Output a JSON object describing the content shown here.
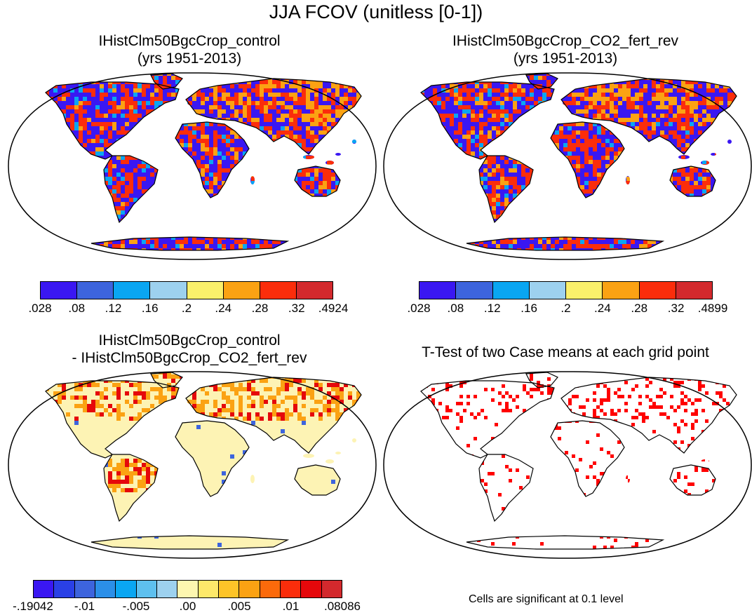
{
  "title": "JJA FCOV (unitless [0-1])",
  "panels": [
    {
      "title1": "IHistClm50BgcCrop_control",
      "title2": "(yrs 1951-2013)"
    },
    {
      "title1": "IHistClm50BgcCrop_CO2_fert_rev",
      "title2": "(yrs 1951-2013)"
    },
    {
      "title1": "IHistClm50BgcCrop_control",
      "title2": "- IHistClm50BgcCrop_CO2_fert_rev"
    },
    {
      "title1": "T-Test of two Case means at each grid point",
      "title2": ""
    }
  ],
  "colorbars": {
    "abs1": {
      "colors": [
        "#3a17f2",
        "#3d64dd",
        "#0aa6f2",
        "#9dd1ef",
        "#fbf06b",
        "#fba213",
        "#fb2d0b",
        "#d3292d"
      ],
      "labels": [
        ".028",
        ".08",
        ".12",
        ".16",
        ".2",
        ".24",
        ".28",
        ".32",
        ".4924"
      ]
    },
    "abs2": {
      "colors": [
        "#3a17f2",
        "#3d64dd",
        "#0aa6f2",
        "#9dd1ef",
        "#fbf06b",
        "#fba213",
        "#fb2d0b",
        "#d3292d"
      ],
      "labels": [
        ".028",
        ".08",
        ".12",
        ".16",
        ".2",
        ".24",
        ".28",
        ".32",
        ".4899"
      ]
    },
    "diff": {
      "colors": [
        "#3a17f2",
        "#2a40e6",
        "#3d64dd",
        "#2b8fe8",
        "#0aa6f2",
        "#5ec0ef",
        "#9dd1ef",
        "#fdf6b0",
        "#fde86a",
        "#fdc428",
        "#fba213",
        "#fb6a0b",
        "#fb2d0b",
        "#e5080b",
        "#d3292d"
      ],
      "labels": [
        "-.19042",
        "-.01",
        "-.005",
        ".00",
        ".005",
        ".01",
        ".08086"
      ]
    }
  },
  "note": "Cells are significant at 0.1 level",
  "land_fill": {
    "abs": "#3a17f2",
    "diff": "#fdf3b4",
    "ttest": "#ffffff"
  },
  "highlights": {
    "abs_warm": "#fb2d0b",
    "abs_orange": "#fba213",
    "abs_cyan": "#0aa6f2",
    "diff_red": "#e5080b",
    "diff_orange": "#fba213",
    "diff_blue": "#3d64dd",
    "sig": "#ff0000"
  }
}
